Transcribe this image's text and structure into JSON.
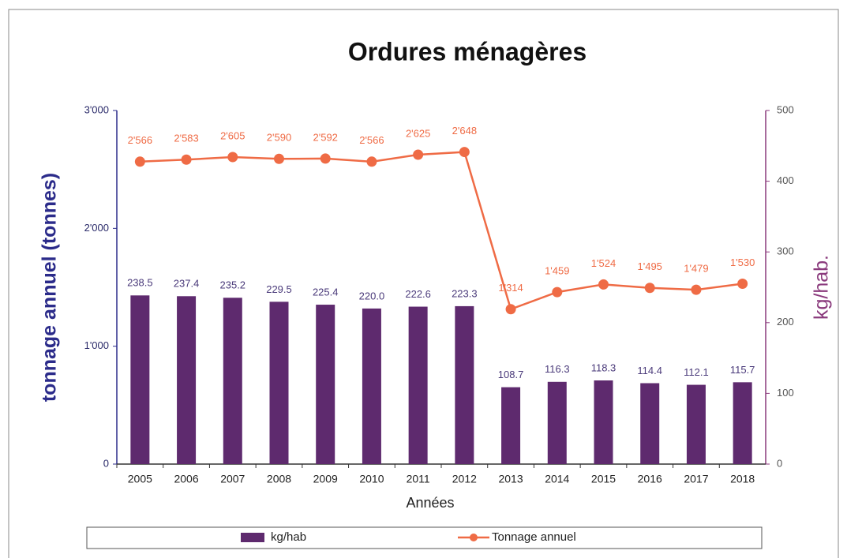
{
  "chart_data": {
    "type": "bar",
    "title": "Ordures ménagères",
    "xlabel": "Années",
    "ylabel": "tonnage annuel (tonnes)",
    "y2label": "kg/hab.",
    "categories": [
      "2005",
      "2006",
      "2007",
      "2008",
      "2009",
      "2010",
      "2011",
      "2012",
      "2013",
      "2014",
      "2015",
      "2016",
      "2017",
      "2018"
    ],
    "series": [
      {
        "name": "kg/hab",
        "type": "bar",
        "axis": "y2",
        "color": "#5e2a6e",
        "values": [
          238.5,
          237.4,
          235.2,
          229.5,
          225.4,
          220.0,
          222.6,
          223.3,
          108.7,
          116.3,
          118.3,
          114.4,
          112.1,
          115.7
        ],
        "value_labels": [
          "238.5",
          "237.4",
          "235.2",
          "229.5",
          "225.4",
          "220.0",
          "222.6",
          "223.3",
          "108.7",
          "116.3",
          "118.3",
          "114.4",
          "112.1",
          "115.7"
        ]
      },
      {
        "name": "Tonnage annuel",
        "type": "line",
        "axis": "y",
        "color": "#ef6b45",
        "values": [
          2566,
          2583,
          2605,
          2590,
          2592,
          2566,
          2625,
          2648,
          1314,
          1459,
          1524,
          1495,
          1479,
          1530
        ],
        "value_labels": [
          "2'566",
          "2'583",
          "2'605",
          "2'590",
          "2'592",
          "2'566",
          "2'625",
          "2'648",
          "1'314",
          "1'459",
          "1'524",
          "1'495",
          "1'479",
          "1'530"
        ]
      }
    ],
    "ylim": [
      0,
      3000
    ],
    "yticks": [
      0,
      {
        "value": 1000,
        "label": "1'000"
      },
      {
        "value": 2000,
        "label": "2'000"
      },
      {
        "value": 3000,
        "label": "3'000"
      }
    ],
    "y2lim": [
      0,
      500
    ],
    "y2ticks": [
      0,
      100,
      200,
      300,
      400,
      500
    ],
    "grid": false,
    "legend": "bottom"
  }
}
